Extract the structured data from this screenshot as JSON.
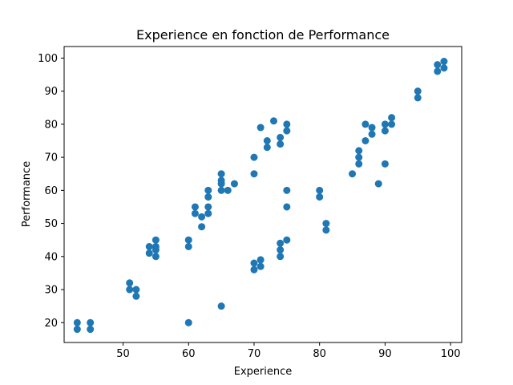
{
  "chart_data": {
    "type": "scatter",
    "title": "Experience en fonction de Performance",
    "xlabel": "Experience",
    "ylabel": "Performance",
    "xlim": [
      41.0,
      101.7
    ],
    "ylim": [
      14.0,
      103.5
    ],
    "xticks": [
      50,
      60,
      70,
      80,
      90,
      100
    ],
    "yticks": [
      20,
      30,
      40,
      50,
      60,
      70,
      80,
      90,
      100
    ],
    "grid": false,
    "color": "#1f77b4",
    "points": [
      [
        43,
        20
      ],
      [
        43,
        18
      ],
      [
        45,
        20
      ],
      [
        45,
        18
      ],
      [
        51,
        32
      ],
      [
        51,
        30
      ],
      [
        52,
        30
      ],
      [
        52,
        28
      ],
      [
        54,
        43
      ],
      [
        54,
        41
      ],
      [
        55,
        45
      ],
      [
        55,
        43
      ],
      [
        55,
        42
      ],
      [
        55,
        40
      ],
      [
        60,
        45
      ],
      [
        60,
        43
      ],
      [
        60,
        20
      ],
      [
        61,
        55
      ],
      [
        61,
        53
      ],
      [
        62,
        52
      ],
      [
        62,
        49
      ],
      [
        63,
        60
      ],
      [
        63,
        58
      ],
      [
        63,
        55
      ],
      [
        63,
        53
      ],
      [
        65,
        65
      ],
      [
        65,
        63
      ],
      [
        65,
        62
      ],
      [
        65,
        60
      ],
      [
        65,
        25
      ],
      [
        66,
        60
      ],
      [
        67,
        62
      ],
      [
        70,
        70
      ],
      [
        70,
        65
      ],
      [
        70,
        38
      ],
      [
        70,
        36
      ],
      [
        71,
        79
      ],
      [
        71,
        39
      ],
      [
        71,
        37
      ],
      [
        72,
        75
      ],
      [
        72,
        73
      ],
      [
        73,
        81
      ],
      [
        74,
        76
      ],
      [
        74,
        74
      ],
      [
        74,
        44
      ],
      [
        74,
        42
      ],
      [
        74,
        40
      ],
      [
        75,
        80
      ],
      [
        75,
        78
      ],
      [
        75,
        60
      ],
      [
        75,
        55
      ],
      [
        75,
        45
      ],
      [
        80,
        60
      ],
      [
        80,
        58
      ],
      [
        81,
        50
      ],
      [
        81,
        48
      ],
      [
        85,
        65
      ],
      [
        86,
        72
      ],
      [
        86,
        70
      ],
      [
        86,
        68
      ],
      [
        87,
        80
      ],
      [
        87,
        75
      ],
      [
        88,
        79
      ],
      [
        88,
        77
      ],
      [
        89,
        62
      ],
      [
        90,
        80
      ],
      [
        90,
        78
      ],
      [
        90,
        68
      ],
      [
        91,
        82
      ],
      [
        91,
        80
      ],
      [
        95,
        90
      ],
      [
        95,
        88
      ],
      [
        98,
        98
      ],
      [
        98,
        96
      ],
      [
        99,
        99
      ],
      [
        99,
        97
      ]
    ]
  }
}
